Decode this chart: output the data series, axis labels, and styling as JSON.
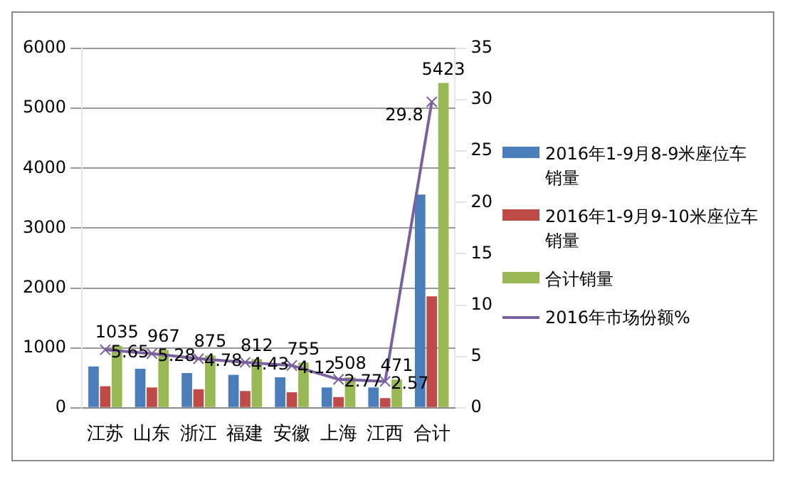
{
  "chart_data": {
    "type": "bar",
    "categories": [
      "江苏",
      "山东",
      "浙江",
      "福建",
      "安徽",
      "上海",
      "江西",
      "合计"
    ],
    "series": [
      {
        "name": "2016年1-9月8-9米座位车销量",
        "color": "#4a7ebb",
        "values": [
          690,
          650,
          580,
          550,
          510,
          340,
          340,
          3560
        ]
      },
      {
        "name": "2016年1-9月9-10米座位车销量",
        "color": "#be4b48",
        "values": [
          360,
          340,
          310,
          280,
          260,
          180,
          160,
          1860
        ]
      },
      {
        "name": "合计销量",
        "color": "#98b954",
        "values": [
          1035,
          967,
          875,
          812,
          755,
          508,
          471,
          5423
        ],
        "value_labels": [
          "1035",
          "967",
          "875",
          "812",
          "755",
          "508",
          "471",
          "5423"
        ]
      },
      {
        "name": "2016年市场份额%",
        "type": "line",
        "axis": "y2",
        "color": "#7d60a0",
        "marker": "cross",
        "values": [
          5.65,
          5.28,
          4.78,
          4.43,
          4.12,
          2.77,
          2.57,
          29.8
        ],
        "value_labels": [
          "5.65",
          "5.28",
          "4.78",
          "4.43",
          "4.12",
          "2.77",
          "2.57",
          "29.8"
        ]
      }
    ],
    "ylim": [
      0,
      6000
    ],
    "yticks": [
      0,
      1000,
      2000,
      3000,
      4000,
      5000,
      6000
    ],
    "y2lim": [
      0,
      35
    ],
    "y2ticks": [
      0,
      5,
      10,
      15,
      20,
      25,
      30,
      35
    ],
    "grid": "y",
    "legend": "right"
  }
}
